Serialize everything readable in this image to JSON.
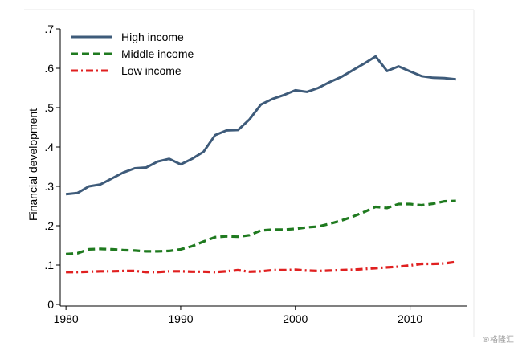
{
  "chart_data": {
    "type": "line",
    "title": "",
    "xlabel": "",
    "ylabel": "Financial development",
    "xlim": [
      1979.5,
      2015
    ],
    "ylim": [
      0,
      0.7
    ],
    "x_ticks": [
      1980,
      1990,
      2000,
      2010
    ],
    "x_tick_labels": [
      "1980",
      "1990",
      "2000",
      "2010"
    ],
    "y_ticks": [
      0,
      0.1,
      0.2,
      0.3,
      0.4,
      0.5,
      0.6,
      0.7
    ],
    "y_tick_labels": [
      "0",
      ".1",
      ".2",
      ".3",
      ".4",
      ".5",
      ".6",
      ".7"
    ],
    "grid": false,
    "legend_position": "top-left",
    "x": [
      1980,
      1981,
      1982,
      1983,
      1984,
      1985,
      1986,
      1987,
      1988,
      1989,
      1990,
      1991,
      1992,
      1993,
      1994,
      1995,
      1996,
      1997,
      1998,
      1999,
      2000,
      2001,
      2002,
      2003,
      2004,
      2005,
      2006,
      2007,
      2008,
      2009,
      2010,
      2011,
      2012,
      2013,
      2014
    ],
    "series": [
      {
        "name": "High income",
        "color": "#3e5b7a",
        "style": "solid",
        "values": [
          0.28,
          0.283,
          0.3,
          0.305,
          0.32,
          0.335,
          0.346,
          0.348,
          0.363,
          0.37,
          0.356,
          0.37,
          0.388,
          0.43,
          0.442,
          0.443,
          0.47,
          0.508,
          0.522,
          0.532,
          0.544,
          0.54,
          0.55,
          0.565,
          0.578,
          0.595,
          0.612,
          0.63,
          0.593,
          0.605,
          0.592,
          0.58,
          0.576,
          0.575,
          0.572
        ]
      },
      {
        "name": "Middle income",
        "color": "#1f7a1f",
        "style": "dashed",
        "values": [
          0.128,
          0.13,
          0.14,
          0.141,
          0.14,
          0.138,
          0.137,
          0.135,
          0.135,
          0.136,
          0.14,
          0.148,
          0.16,
          0.171,
          0.173,
          0.172,
          0.176,
          0.188,
          0.19,
          0.19,
          0.192,
          0.196,
          0.198,
          0.205,
          0.213,
          0.223,
          0.235,
          0.248,
          0.245,
          0.255,
          0.255,
          0.252,
          0.256,
          0.262,
          0.263
        ]
      },
      {
        "name": "Low income",
        "color": "#e02020",
        "style": "dashdot",
        "values": [
          0.082,
          0.082,
          0.083,
          0.084,
          0.084,
          0.085,
          0.085,
          0.082,
          0.082,
          0.084,
          0.084,
          0.083,
          0.083,
          0.082,
          0.084,
          0.087,
          0.083,
          0.084,
          0.087,
          0.087,
          0.088,
          0.086,
          0.085,
          0.086,
          0.087,
          0.088,
          0.09,
          0.092,
          0.094,
          0.096,
          0.099,
          0.103,
          0.103,
          0.104,
          0.108
        ]
      }
    ]
  },
  "watermark": "®格隆汇"
}
